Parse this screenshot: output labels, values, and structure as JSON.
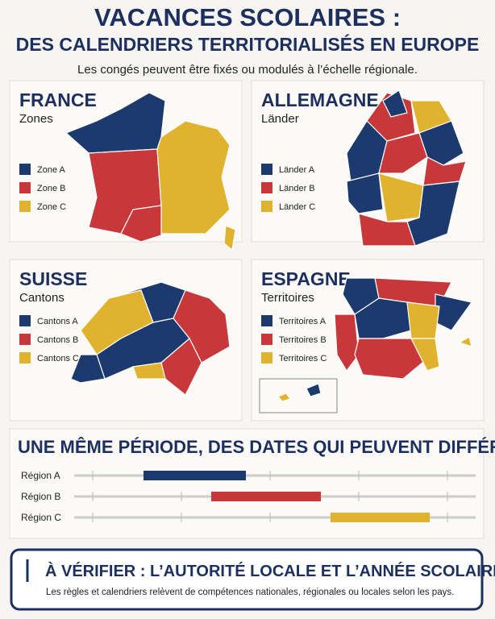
{
  "header": {
    "title_line1": "VACANCES SCOLAIRES :",
    "title_line2": "DES CALENDRIERS TERRITORIALISÉS EN EUROPE",
    "subtitle": "Les congés peuvent être fixés ou modulés à l’échelle régionale."
  },
  "panels": [
    {
      "name": "FRANCE",
      "subtitle": "Zones",
      "legend": [
        "Zone A",
        "Zone B",
        "Zone C"
      ]
    },
    {
      "name": "ALLEMAGNE",
      "subtitle": "Länder",
      "legend": [
        "Länder A",
        "Länder B",
        "Länder C"
      ]
    },
    {
      "name": "SUISSE",
      "subtitle": "Cantons",
      "legend": [
        "Cantons A",
        "Cantons B",
        "Cantons C"
      ]
    },
    {
      "name": "ESPAGNE",
      "subtitle": "Territoires",
      "legend": [
        "Territoires A",
        "Territoires B",
        "Territoires C"
      ]
    }
  ],
  "timeline": {
    "title": "UNE MÊME PÉRIODE, DES DATES QUI PEUVENT DIFFÉRER",
    "rows": [
      "Région A",
      "Région B",
      "Région C"
    ]
  },
  "footer": {
    "title": "À VÉRIFIER : L’AUTORITÉ LOCALE ET L’ANNÉE SCOLAIRE.",
    "text": "Les règles et calendriers relèvent de compétences nationales, régionales ou locales selon les pays."
  }
}
